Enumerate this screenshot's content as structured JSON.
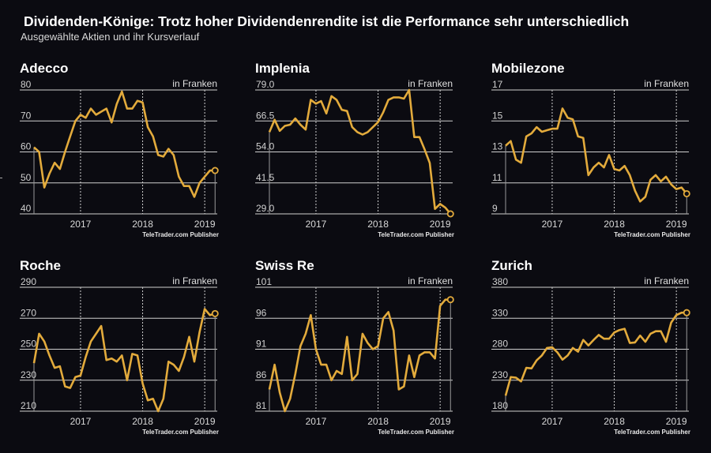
{
  "title": "Dividenden-Könige: Trotz hoher Dividendenrendite ist die Performance sehr unterschiedlich",
  "subtitle": "Ausgewählte Aktien und ihr Kursverlauf",
  "colors": {
    "background": "#0b0b11",
    "line": "#e3ab3c",
    "grid": "#d0d0d0",
    "text": "#ffffff"
  },
  "chart_data": [
    {
      "type": "line",
      "title": "Adecco",
      "unit_label": "in Franken",
      "source": "TeleTrader.com Publisher",
      "ylim": [
        40,
        80
      ],
      "yticks": [
        "80",
        "70",
        "60",
        "50",
        "40"
      ],
      "xticks": [
        "2017",
        "2018",
        "2019"
      ],
      "x_start": "2016-04",
      "x_end": "2019-03",
      "frequency": "monthly",
      "values": [
        61.5,
        60,
        48.5,
        53,
        56.5,
        54.5,
        60,
        65,
        70,
        72,
        71,
        74,
        72,
        73,
        74,
        69.5,
        75.5,
        79.5,
        74,
        74,
        76.5,
        76,
        68,
        65,
        59,
        58.5,
        61,
        59,
        52,
        49,
        49,
        45.5,
        50,
        52,
        54,
        54
      ]
    },
    {
      "type": "line",
      "title": "Implenia",
      "unit_label": "in Franken",
      "source": "TeleTrader.com Publisher",
      "ylim": [
        29,
        79
      ],
      "yticks": [
        "79.0",
        "66.5",
        "54.0",
        "41.5",
        "29.0"
      ],
      "xticks": [
        "2017",
        "2018",
        "2019"
      ],
      "x_start": "2016-04",
      "x_end": "2019-03",
      "frequency": "monthly",
      "values": [
        62,
        67,
        62.5,
        64.5,
        65,
        67.5,
        65,
        63,
        75,
        73.5,
        74.5,
        69.5,
        76.5,
        75,
        71,
        70.5,
        64,
        62,
        61,
        62,
        64,
        66,
        70,
        75,
        76,
        76,
        75.5,
        79,
        60,
        60,
        55,
        49.5,
        31,
        33,
        31.5,
        29
      ]
    },
    {
      "type": "line",
      "title": "Mobilezone",
      "unit_label": "in Franken",
      "source": "TeleTrader.com Publisher",
      "ylim": [
        9,
        17
      ],
      "yticks": [
        "17",
        "15",
        "13",
        "11",
        "9"
      ],
      "xticks": [
        "2017",
        "2018",
        "2019"
      ],
      "x_start": "2016-04",
      "x_end": "2019-03",
      "frequency": "monthly",
      "values": [
        13.4,
        13.7,
        12.5,
        12.3,
        14.0,
        14.2,
        14.6,
        14.3,
        14.4,
        14.5,
        14.5,
        15.8,
        15.2,
        15.1,
        14.0,
        13.9,
        11.5,
        12.0,
        12.3,
        12.0,
        12.8,
        11.9,
        11.8,
        12.1,
        11.5,
        10.5,
        9.8,
        10.1,
        11.2,
        11.5,
        11.1,
        11.4,
        10.9,
        10.6,
        10.7,
        10.3
      ]
    },
    {
      "type": "line",
      "title": "Roche",
      "unit_label": "in Franken",
      "source": "TeleTrader.com Publisher",
      "ylim": [
        210,
        290
      ],
      "yticks": [
        "290",
        "270",
        "250",
        "230",
        "210"
      ],
      "xticks": [
        "2017",
        "2018",
        "2019"
      ],
      "x_start": "2016-04",
      "x_end": "2019-03",
      "frequency": "monthly",
      "values": [
        241,
        260,
        255,
        246,
        238,
        239,
        226,
        225,
        232,
        233,
        245,
        255,
        260,
        265,
        243,
        244,
        242,
        246,
        230,
        247,
        246,
        228,
        217,
        218,
        210,
        218,
        242,
        240,
        236,
        245,
        258,
        242,
        261,
        276,
        272,
        273
      ]
    },
    {
      "type": "line",
      "title": "Swiss Re",
      "unit_label": "in Franken",
      "source": "TeleTrader.com Publisher",
      "ylim": [
        81,
        101
      ],
      "yticks": [
        "101",
        "96",
        "91",
        "86",
        "81"
      ],
      "xticks": [
        "2017",
        "2018",
        "2019"
      ],
      "x_start": "2016-04",
      "x_end": "2019-03",
      "frequency": "monthly",
      "values": [
        84.5,
        88.5,
        84,
        81,
        83,
        87,
        91.5,
        93.5,
        96.5,
        91,
        88.5,
        88.5,
        86,
        87.5,
        87,
        93,
        86,
        87,
        93.5,
        92,
        91,
        91.5,
        96,
        97,
        94,
        84.5,
        85,
        90,
        86.5,
        90,
        90.5,
        90.5,
        89.5,
        98,
        99,
        99
      ]
    },
    {
      "type": "line",
      "title": "Zurich",
      "unit_label": "in Franken",
      "source": "TeleTrader.com Publisher",
      "ylim": [
        180,
        380
      ],
      "yticks": [
        "380",
        "330",
        "280",
        "230",
        "180"
      ],
      "xticks": [
        "2017",
        "2018",
        "2019"
      ],
      "x_start": "2016-04",
      "x_end": "2019-03",
      "frequency": "monthly",
      "values": [
        205,
        235,
        234,
        228,
        250,
        249,
        262,
        270,
        282,
        283,
        275,
        263,
        270,
        282,
        276,
        295,
        286,
        295,
        303,
        297,
        297,
        307,
        311,
        313,
        290,
        291,
        302,
        292,
        305,
        309,
        309,
        292,
        323,
        335,
        339,
        339
      ]
    }
  ]
}
